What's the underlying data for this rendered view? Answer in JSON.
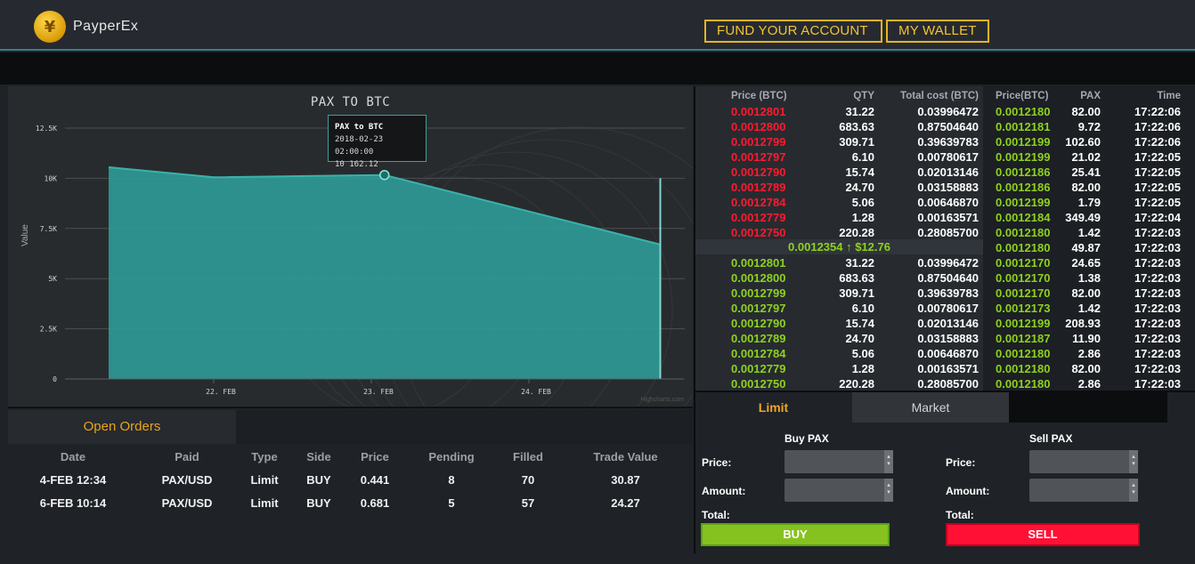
{
  "header": {
    "brand": "PayperEx",
    "fund_button": "FUND YOUR ACCOUNT",
    "wallet_button": "MY WALLET"
  },
  "chart_data": {
    "type": "area",
    "title": "PAX TO BTC",
    "ylabel": "Value",
    "xlabel": "",
    "x": [
      "2018-02-21 08:00",
      "2018-02-22 00:00",
      "2018-02-23 02:00",
      "2018-02-24 20:00"
    ],
    "y": [
      10550,
      10050,
      10162.12,
      6700
    ],
    "x_ticks": [
      "22. FEB",
      "23. FEB",
      "24. FEB"
    ],
    "y_ticks": [
      "0",
      "2.5K",
      "5K",
      "7.5K",
      "10K",
      "12.5K"
    ],
    "ylim": [
      0,
      12500
    ],
    "grid": true,
    "color": "#2e9e9a",
    "tooltip": {
      "title": "PAX to BTC",
      "date": "2018-02-23 02:00:00",
      "value": "10 162.12"
    },
    "credit": "Highcharts.com"
  },
  "open_orders": {
    "tab": "Open Orders",
    "columns": [
      "Date",
      "Paid",
      "Type",
      "Side",
      "Price",
      "Pending",
      "Filled",
      "Trade Value"
    ],
    "rows": [
      [
        "4-FEB 12:34",
        "PAX/USD",
        "Limit",
        "BUY",
        "0.441",
        "8",
        "70",
        "30.87"
      ],
      [
        "6-FEB 10:14",
        "PAX/USD",
        "Limit",
        "BUY",
        "0.681",
        "5",
        "57",
        "24.27"
      ]
    ]
  },
  "order_book": {
    "headers": [
      "Price (BTC)",
      "QTY",
      "Total cost (BTC)",
      "Price(BTC)",
      "PAX",
      "Time"
    ],
    "asks": [
      [
        "0.0012801",
        "31.22",
        "0.03996472"
      ],
      [
        "0.0012800",
        "683.63",
        "0.87504640"
      ],
      [
        "0.0012799",
        "309.71",
        "0.39639783"
      ],
      [
        "0.0012797",
        "6.10",
        "0.00780617"
      ],
      [
        "0.0012790",
        "15.74",
        "0.02013146"
      ],
      [
        "0.0012789",
        "24.70",
        "0.03158883"
      ],
      [
        "0.0012784",
        "5.06",
        "0.00646870"
      ],
      [
        "0.0012779",
        "1.28",
        "0.00163571"
      ],
      [
        "0.0012750",
        "220.28",
        "0.28085700"
      ]
    ],
    "mid_price": "0.0012354 ↑ $12.76",
    "bids": [
      [
        "0.0012801",
        "31.22",
        "0.03996472"
      ],
      [
        "0.0012800",
        "683.63",
        "0.87504640"
      ],
      [
        "0.0012799",
        "309.71",
        "0.39639783"
      ],
      [
        "0.0012797",
        "6.10",
        "0.00780617"
      ],
      [
        "0.0012790",
        "15.74",
        "0.02013146"
      ],
      [
        "0.0012789",
        "24.70",
        "0.03158883"
      ],
      [
        "0.0012784",
        "5.06",
        "0.00646870"
      ],
      [
        "0.0012779",
        "1.28",
        "0.00163571"
      ],
      [
        "0.0012750",
        "220.28",
        "0.28085700"
      ]
    ],
    "trades": [
      [
        "0.0012180",
        "82.00",
        "17:22:06"
      ],
      [
        "0.0012181",
        "9.72",
        "17:22:06"
      ],
      [
        "0.0012199",
        "102.60",
        "17:22:06"
      ],
      [
        "0.0012199",
        "21.02",
        "17:22:05"
      ],
      [
        "0.0012186",
        "25.41",
        "17:22:05"
      ],
      [
        "0.0012186",
        "82.00",
        "17:22:05"
      ],
      [
        "0.0012199",
        "1.79",
        "17:22:05"
      ],
      [
        "0.0012184",
        "349.49",
        "17:22:04"
      ],
      [
        "0.0012180",
        "1.42",
        "17:22:03"
      ],
      [
        "0.0012180",
        "49.87",
        "17:22:03"
      ],
      [
        "0.0012170",
        "24.65",
        "17:22:03"
      ],
      [
        "0.0012170",
        "1.38",
        "17:22:03"
      ],
      [
        "0.0012170",
        "82.00",
        "17:22:03"
      ],
      [
        "0.0012173",
        "1.42",
        "17:22:03"
      ],
      [
        "0.0012199",
        "208.93",
        "17:22:03"
      ],
      [
        "0.0012187",
        "11.90",
        "17:22:03"
      ],
      [
        "0.0012180",
        "2.86",
        "17:22:03"
      ],
      [
        "0.0012180",
        "82.00",
        "17:22:03"
      ],
      [
        "0.0012180",
        "2.86",
        "17:22:03"
      ]
    ]
  },
  "trade_panel": {
    "tab_limit": "Limit",
    "tab_market": "Market",
    "buy_title": "Buy PAX",
    "sell_title": "Sell PAX",
    "price_label": "Price:",
    "amount_label": "Amount:",
    "total_label": "Total:",
    "buy_button": "BUY",
    "sell_button": "SELL"
  },
  "colors": {
    "accent": "#f4c431",
    "ask": "#ff1a2e",
    "bid": "#8ed11f",
    "chart_fill": "#2e9e9a"
  }
}
